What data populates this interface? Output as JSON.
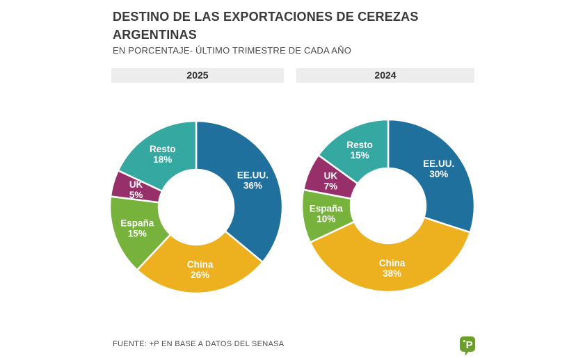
{
  "header": {
    "title": "DESTINO DE LAS EXPORTACIONES DE CEREZAS ARGENTINAS",
    "subtitle": "EN PORCENTAJE- ÚLTIMO TRIMESTRE DE CADA AÑO"
  },
  "palette": {
    "EE.UU.": "#20709d",
    "China": "#edb01e",
    "España": "#76b23c",
    "UK": "#97306a",
    "Resto": "#35a8a2"
  },
  "chart_data": [
    {
      "type": "pie",
      "variant": "donut",
      "title": "2025",
      "categories": [
        "EE.UU.",
        "China",
        "España",
        "UK",
        "Resto"
      ],
      "values": [
        36,
        26,
        15,
        5,
        18
      ],
      "unit": "%",
      "start_angle_deg": 0,
      "direction": "clockwise",
      "labels_inside": true
    },
    {
      "type": "pie",
      "variant": "donut",
      "title": "2024",
      "categories": [
        "EE.UU.",
        "China",
        "España",
        "UK",
        "Resto"
      ],
      "values": [
        30,
        38,
        10,
        7,
        15
      ],
      "unit": "%",
      "start_angle_deg": 0,
      "direction": "clockwise",
      "labels_inside": true
    }
  ],
  "footer": {
    "source": "FUENTE: +P EN BASE A DATOS DEL SENASA",
    "logo_letter": "P"
  }
}
